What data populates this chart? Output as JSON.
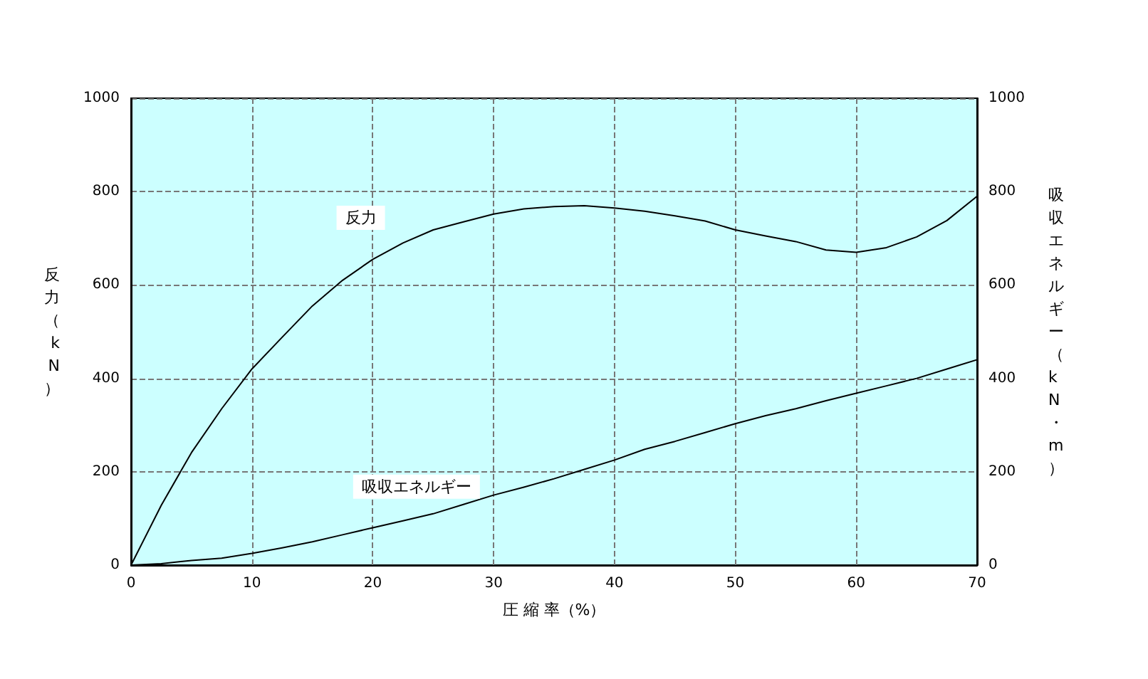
{
  "chart_data": {
    "type": "line",
    "xlabel": "圧 縮 率（%）",
    "ylabel": "反力（kN）",
    "y2label": "吸収エネルギー（kN・m）",
    "x": [
      0,
      2.5,
      5,
      7.5,
      10,
      12.5,
      15,
      17.5,
      20,
      22.5,
      25,
      27.5,
      30,
      32.5,
      35,
      37.5,
      40,
      42.5,
      45,
      47.5,
      50,
      52.5,
      55,
      57.5,
      60,
      62.5,
      65,
      67.5,
      70
    ],
    "series": [
      {
        "name": "反力",
        "color": "#000000",
        "values": [
          0,
          128,
          241,
          335,
          420,
          488,
          555,
          610,
          655,
          690,
          718,
          735,
          752,
          763,
          768,
          770,
          765,
          758,
          748,
          737,
          718,
          705,
          693,
          675,
          670,
          680,
          703,
          738,
          790
        ]
      },
      {
        "name": "吸収エネルギー",
        "color": "#000000",
        "axis": "y2",
        "values": [
          0,
          3,
          10,
          15,
          25,
          37,
          50,
          65,
          80,
          95,
          110,
          130,
          150,
          167,
          185,
          205,
          225,
          248,
          265,
          284,
          303,
          320,
          335,
          352,
          368,
          384,
          400,
          420,
          440
        ]
      }
    ],
    "xlim": [
      0,
      70
    ],
    "xticks": [
      0,
      10,
      20,
      30,
      40,
      50,
      60,
      70
    ],
    "ylim": [
      0,
      1000
    ],
    "yticks": [
      0,
      200,
      400,
      600,
      800,
      1000
    ],
    "y2lim": [
      0,
      1000
    ],
    "y2ticks": [
      0,
      200,
      400,
      600,
      800,
      1000
    ],
    "grid": true,
    "legend": false,
    "marker": "none",
    "line_style": "solid"
  }
}
